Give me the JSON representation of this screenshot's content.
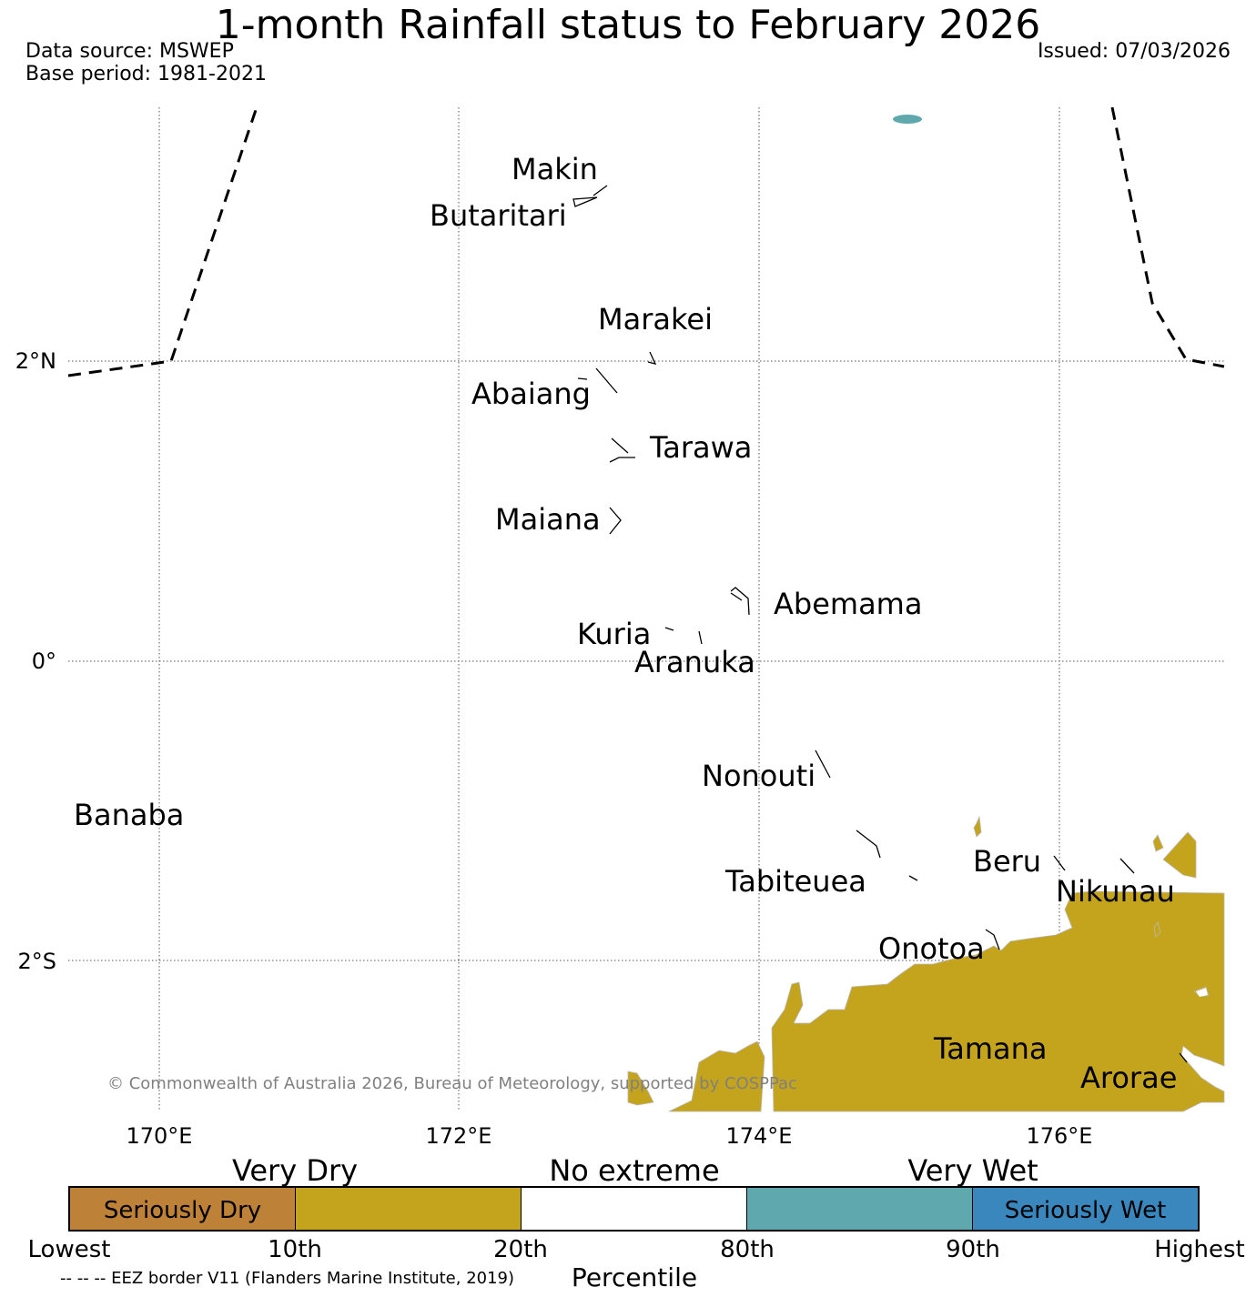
{
  "header": {
    "title": "1-month Rainfall status to February 2026",
    "data_source": "Data source: MSWEP",
    "base_period": "Base period: 1981-2021",
    "issued": "Issued: 07/03/2026"
  },
  "map": {
    "lat_labels": [
      "2°N",
      "0°",
      "2°S"
    ],
    "lon_labels": [
      "170°E",
      "172°E",
      "174°E",
      "176°E"
    ],
    "islands": [
      "Makin",
      "Butaritari",
      "Marakei",
      "Abaiang",
      "Tarawa",
      "Maiana",
      "Abemama",
      "Kuria",
      "Aranuka",
      "Nonouti",
      "Banaba",
      "Beru",
      "Nikunau",
      "Tabiteuea",
      "Onotoa",
      "Tamana",
      "Arorae"
    ],
    "copyright": "© Commonwealth of Australia 2026, Bureau of Meteorology, supported by COSPPac",
    "colors": {
      "very_dry": "#c4a41c",
      "very_wet": "#5fa8ae",
      "eez_line": "#000000",
      "grid": "#555555"
    }
  },
  "legend": {
    "categories": [
      "Very Dry",
      "No extreme",
      "Very Wet"
    ],
    "segments": [
      {
        "label": "Seriously Dry",
        "color": "#bd8237"
      },
      {
        "label": "",
        "color": "#c4a41c"
      },
      {
        "label": "",
        "color": "#ffffff"
      },
      {
        "label": "",
        "color": "#5fa8ae"
      },
      {
        "label": "Seriously Wet",
        "color": "#3a87bd"
      }
    ],
    "ticks": [
      "Lowest",
      "10th",
      "20th",
      "80th",
      "90th",
      "Highest"
    ],
    "axis_label": "Percentile",
    "eez_note": "-- -- -- EEZ border V11 (Flanders Marine Institute, 2019)"
  }
}
